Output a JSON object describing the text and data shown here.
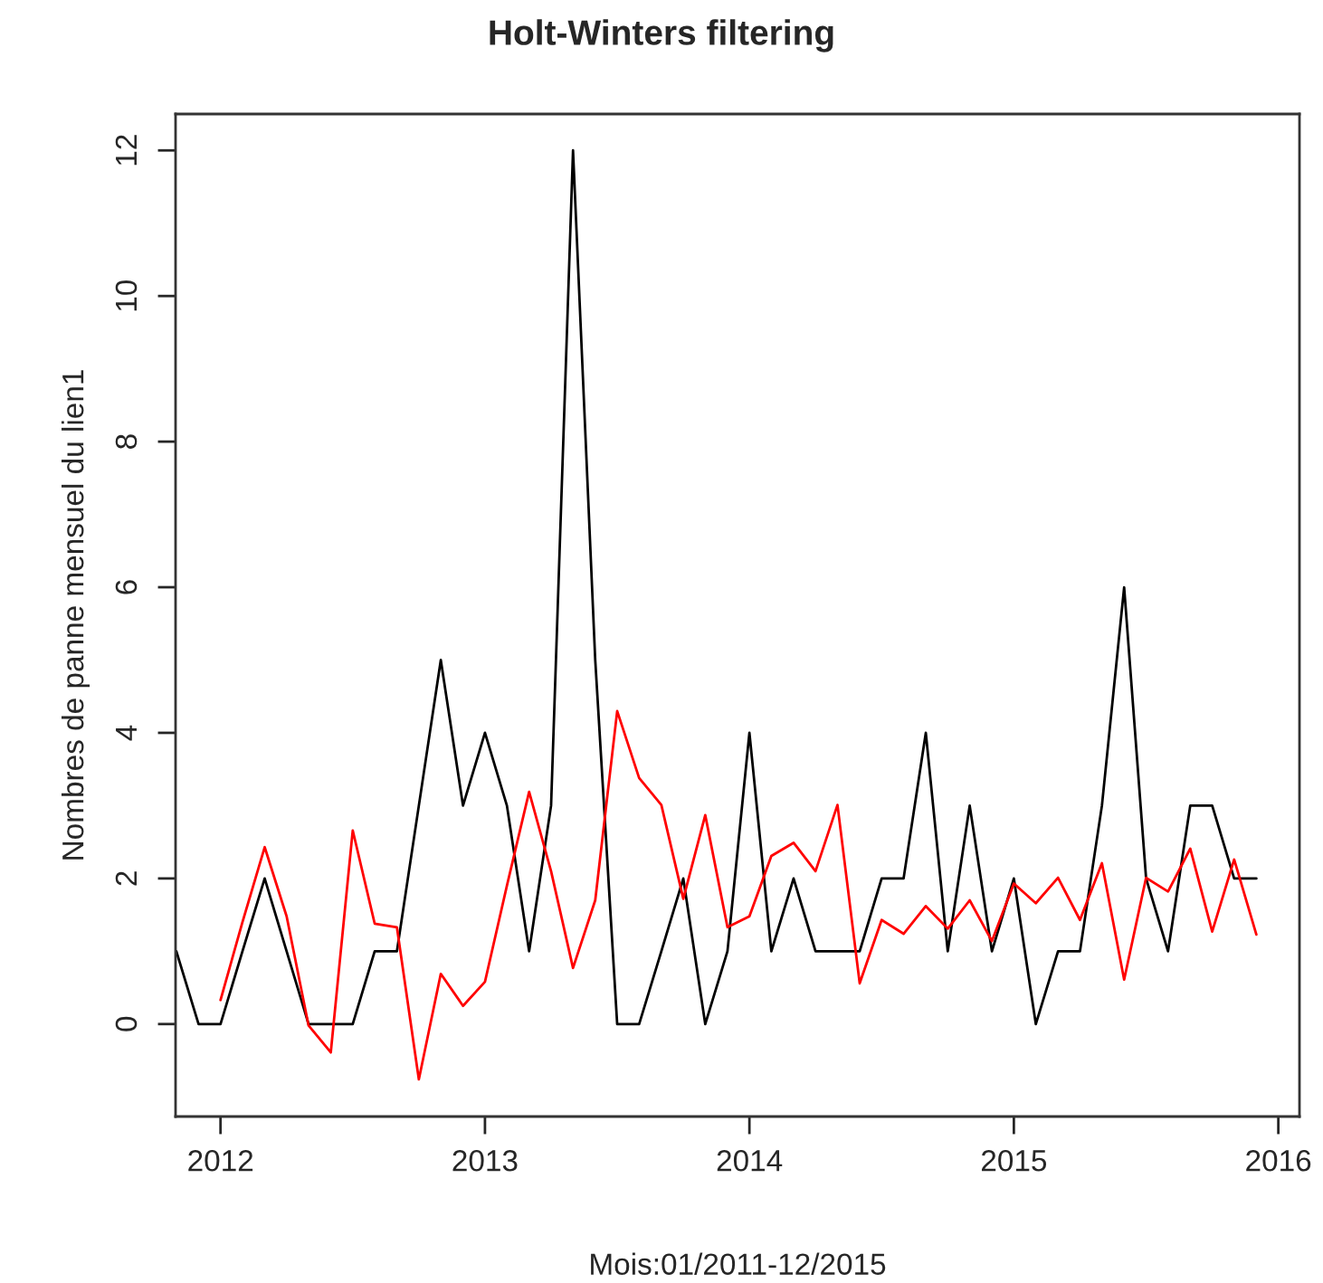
{
  "chart_data": {
    "type": "line",
    "title": "Holt-Winters filtering",
    "xlabel": "Mois:01/2011-12/2015",
    "ylabel": "Nombres de panne mensuel du lien1",
    "series": [
      {
        "color": "#000000",
        "x": [
          2011.833,
          2011.917,
          2012.0,
          2012.083,
          2012.167,
          2012.25,
          2012.333,
          2012.417,
          2012.5,
          2012.583,
          2012.667,
          2012.75,
          2012.833,
          2012.917,
          2013.0,
          2013.083,
          2013.167,
          2013.25,
          2013.333,
          2013.417,
          2013.5,
          2013.583,
          2013.667,
          2013.75,
          2013.833,
          2013.917,
          2014.0,
          2014.083,
          2014.167,
          2014.25,
          2014.333,
          2014.417,
          2014.5,
          2014.583,
          2014.667,
          2014.75,
          2014.833,
          2014.917,
          2015.0,
          2015.083,
          2015.167,
          2015.25,
          2015.333,
          2015.417,
          2015.5,
          2015.583,
          2015.667,
          2015.75,
          2015.833,
          2015.917
        ],
        "values": [
          1,
          0,
          0,
          1,
          2,
          1,
          0,
          0,
          0,
          1,
          1,
          3,
          5,
          3,
          4,
          3,
          1,
          3,
          12,
          5,
          0,
          0,
          1,
          2,
          0,
          1,
          4,
          1,
          2,
          1,
          1,
          1,
          2,
          2,
          4,
          1,
          3,
          1,
          2,
          0,
          1,
          1,
          3,
          6,
          2,
          1,
          3,
          3,
          2,
          2
        ]
      },
      {
        "color": "#ff0000",
        "x": [
          2012.0,
          2012.083,
          2012.167,
          2012.25,
          2012.333,
          2012.417,
          2012.5,
          2012.583,
          2012.667,
          2012.75,
          2012.833,
          2012.917,
          2013.0,
          2013.083,
          2013.167,
          2013.25,
          2013.333,
          2013.417,
          2013.5,
          2013.583,
          2013.667,
          2013.75,
          2013.833,
          2013.917,
          2014.0,
          2014.083,
          2014.167,
          2014.25,
          2014.333,
          2014.417,
          2014.5,
          2014.583,
          2014.667,
          2014.75,
          2014.833,
          2014.917,
          2015.0,
          2015.083,
          2015.167,
          2015.25,
          2015.333,
          2015.417,
          2015.5,
          2015.583,
          2015.667,
          2015.75,
          2015.833,
          2015.917
        ],
        "values": [
          0.33,
          1.4,
          2.43,
          1.48,
          -0.02,
          -0.39,
          2.66,
          1.38,
          1.33,
          -0.76,
          0.69,
          0.25,
          0.58,
          1.9,
          3.19,
          2.1,
          0.77,
          1.7,
          4.3,
          3.38,
          3.01,
          1.72,
          2.87,
          1.33,
          1.48,
          2.31,
          2.49,
          2.1,
          3.01,
          0.56,
          1.43,
          1.24,
          1.62,
          1.31,
          1.7,
          1.14,
          1.93,
          1.66,
          2.01,
          1.43,
          2.21,
          0.61,
          2.01,
          1.82,
          2.41,
          1.27,
          2.26,
          1.23
        ]
      }
    ],
    "xlim": [
      2011.83,
      2016.08
    ],
    "xticks": [
      2012,
      2013,
      2014,
      2015,
      2016
    ],
    "ylim": [
      -1.27,
      12.5
    ],
    "yticks": [
      0,
      2,
      4,
      6,
      8,
      10,
      12
    ],
    "grid": false,
    "legend": false
  }
}
